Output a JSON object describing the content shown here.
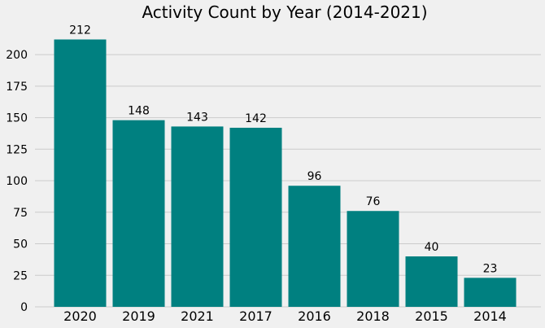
{
  "chart_data": {
    "type": "bar",
    "title": "Activity Count by Year (2014-2021)",
    "xlabel": "",
    "ylabel": "",
    "categories": [
      "2020",
      "2019",
      "2021",
      "2017",
      "2016",
      "2018",
      "2015",
      "2014"
    ],
    "values": [
      212,
      148,
      143,
      142,
      96,
      76,
      40,
      23
    ],
    "value_labels": [
      "212",
      "148",
      "143",
      "142",
      "96",
      "76",
      "40",
      "23"
    ],
    "ylim": [
      0,
      222
    ],
    "yticks": [
      0,
      25,
      50,
      75,
      100,
      125,
      150,
      175,
      200
    ],
    "ytick_labels": [
      "0",
      "25",
      "50",
      "75",
      "100",
      "125",
      "150",
      "175",
      "200"
    ],
    "grid": "horizontal",
    "bar_color": "#008080",
    "background_color": "#f0f0f0",
    "grid_color": "#cbcbcb"
  }
}
